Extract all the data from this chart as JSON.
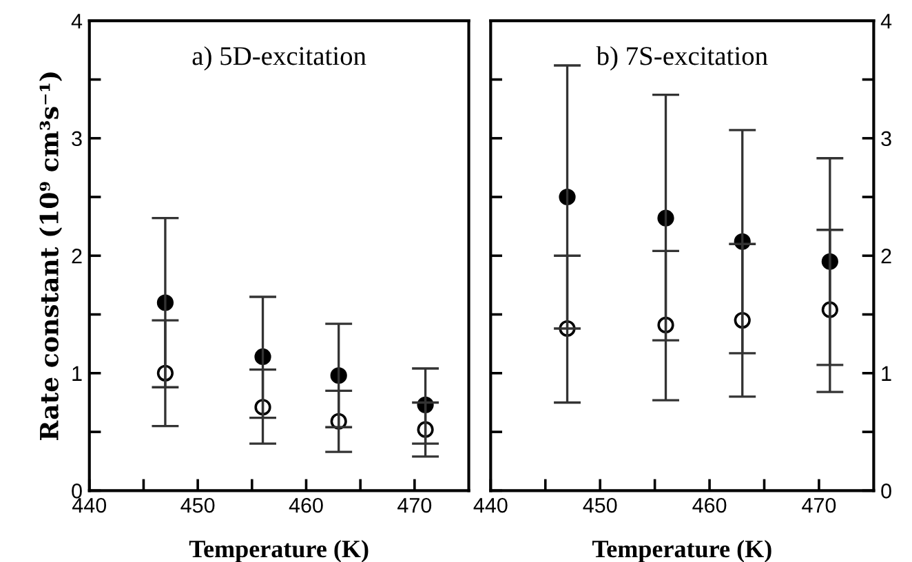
{
  "chart_data": [
    {
      "type": "scatter",
      "title": "a) 5D-excitation",
      "xlabel": "Temperature (K)",
      "ylabel": "Rate constant (10⁹ cm³s⁻¹)",
      "x": [
        447,
        456,
        463,
        471
      ],
      "series": [
        {
          "color": "#000000",
          "values": [
            1.6,
            1.14,
            0.98,
            0.73
          ],
          "errors": [
            [
              0.55,
              2.32
            ],
            [
              0.4,
              1.65
            ],
            [
              0.33,
              1.42
            ],
            [
              0.29,
              1.04
            ]
          ]
        },
        {
          "color": "#ffffff",
          "values": [
            1.0,
            0.71,
            0.59,
            0.52
          ],
          "errors": [
            [
              0.88,
              1.45
            ],
            [
              0.62,
              1.03
            ],
            [
              0.54,
              0.85
            ],
            [
              0.4,
              0.75
            ]
          ]
        }
      ],
      "xlim": [
        440,
        475
      ],
      "xticks": [
        440,
        {
          "value": 445,
          "label": null
        },
        450,
        {
          "value": 455,
          "label": null
        },
        460,
        {
          "value": 465,
          "label": null
        },
        470
      ],
      "ylim": [
        0,
        4
      ],
      "yticks": [
        0,
        {
          "value": 0.5,
          "label": null
        },
        1,
        {
          "value": 1.5,
          "label": null
        },
        2,
        {
          "value": 2.5,
          "label": null
        },
        3,
        {
          "value": 3.5,
          "label": null
        },
        4
      ],
      "marker": "circle",
      "grid": false,
      "legend": false
    },
    {
      "type": "scatter",
      "title": "b) 7S-excitation",
      "xlabel": "Temperature (K)",
      "x": [
        447,
        456,
        463,
        471
      ],
      "series": [
        {
          "color": "#000000",
          "axis": "y2",
          "values": [
            2.5,
            2.32,
            2.12,
            1.95
          ],
          "errors": [
            [
              0.75,
              3.62
            ],
            [
              0.77,
              3.37
            ],
            [
              0.8,
              3.07
            ],
            [
              0.84,
              2.83
            ]
          ]
        },
        {
          "color": "#ffffff",
          "axis": "y2",
          "values": [
            1.38,
            1.41,
            1.45,
            1.54
          ],
          "errors": [
            [
              1.38,
              2.0
            ],
            [
              1.28,
              2.04
            ],
            [
              1.17,
              2.1
            ],
            [
              1.07,
              2.22
            ]
          ]
        }
      ],
      "xlim": [
        440,
        475
      ],
      "xticks": [
        440,
        {
          "value": 445,
          "label": null
        },
        450,
        {
          "value": 455,
          "label": null
        },
        460,
        {
          "value": 465,
          "label": null
        },
        470
      ],
      "y2lim": [
        0,
        4
      ],
      "y2ticks": [
        0,
        {
          "value": 0.5,
          "label": null
        },
        1,
        {
          "value": 1.5,
          "label": null
        },
        2,
        {
          "value": 2.5,
          "label": null
        },
        3,
        {
          "value": 3.5,
          "label": null
        },
        4
      ],
      "marker": "circle",
      "grid": false,
      "legend": false
    }
  ]
}
